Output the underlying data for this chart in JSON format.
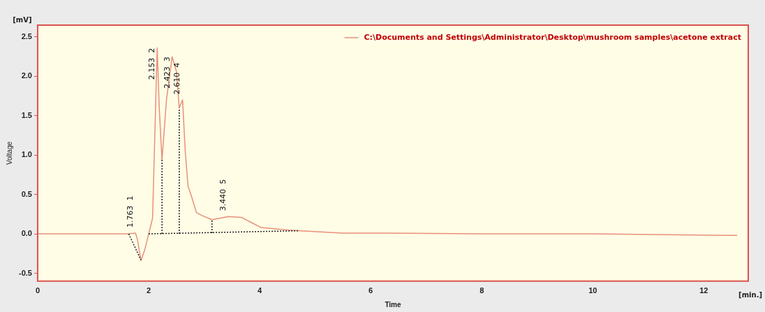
{
  "chart_data": {
    "type": "line",
    "xlabel": "Time",
    "ylabel": "Voltage",
    "xlim": [
      0,
      12.8
    ],
    "ylim": [
      -0.6,
      2.65
    ],
    "xticks": [
      0,
      2,
      4,
      6,
      8,
      10,
      12
    ],
    "yticks": [
      -0.5,
      {
        "value": 0,
        "label": "0.0"
      },
      0.5,
      {
        "value": 1,
        "label": "1.0"
      },
      1.5,
      {
        "value": 2,
        "label": "2.0"
      },
      2.5
    ],
    "grid": false,
    "legend": "top right",
    "marker": "none",
    "series": [
      {
        "name": "C:\\Documents and Settings\\Administrator\\Desktop\\mushroom samples\\acetone extract",
        "color": "#e8907a",
        "line_style": "solid",
        "x": [
          0,
          1.64,
          1.763,
          1.8,
          1.86,
          1.93,
          2.0,
          2.07,
          2.153,
          2.19,
          2.24,
          2.32,
          2.423,
          2.5,
          2.55,
          2.61,
          2.66,
          2.71,
          2.77,
          2.86,
          2.97,
          3.14,
          3.44,
          3.67,
          3.86,
          4.03,
          4.5,
          4.7,
          5.5,
          6.3,
          8,
          10,
          12.6
        ],
        "values": [
          0,
          0,
          0.01,
          -0.08,
          -0.34,
          -0.2,
          0,
          0.2,
          2.36,
          1.6,
          0.94,
          1.7,
          2.25,
          2.06,
          1.6,
          1.7,
          1.03,
          0.6,
          0.48,
          0.27,
          0.23,
          0.18,
          0.22,
          0.21,
          0.14,
          0.08,
          0.05,
          0.04,
          0.01,
          0.01,
          0,
          0,
          -0.02
        ]
      },
      {
        "color": "#222222",
        "line_style": "dotted",
        "x": [
          1.64,
          1.86
        ],
        "values": [
          0,
          -0.33
        ]
      },
      {
        "color": "#222222",
        "line_style": "dotted",
        "x": [
          2.0,
          4.7
        ],
        "values": [
          0,
          0.04
        ]
      },
      {
        "color": "#222222",
        "line_style": "dotted",
        "x": [
          2.24,
          2.24
        ],
        "values": [
          0,
          0.94
        ]
      },
      {
        "color": "#222222",
        "line_style": "dotted",
        "x": [
          2.55,
          2.55
        ],
        "values": [
          0,
          1.6
        ]
      },
      {
        "color": "#222222",
        "line_style": "dotted",
        "x": [
          3.14,
          3.14
        ],
        "values": [
          0.01,
          0.18
        ]
      }
    ],
    "annotations": [
      "[mV]",
      "[min.]",
      {
        "text": "1.763  1",
        "x": 1.763,
        "y": 0.01
      },
      {
        "text": "2.153  2",
        "x": 2.153,
        "y": 2.36
      },
      {
        "text": "2.423  3",
        "x": 2.423,
        "y": 2.25
      },
      {
        "text": "2.610  4",
        "x": 2.61,
        "y": 1.7
      },
      {
        "text": "3.440  5",
        "x": 3.44,
        "y": 0.22
      }
    ]
  }
}
